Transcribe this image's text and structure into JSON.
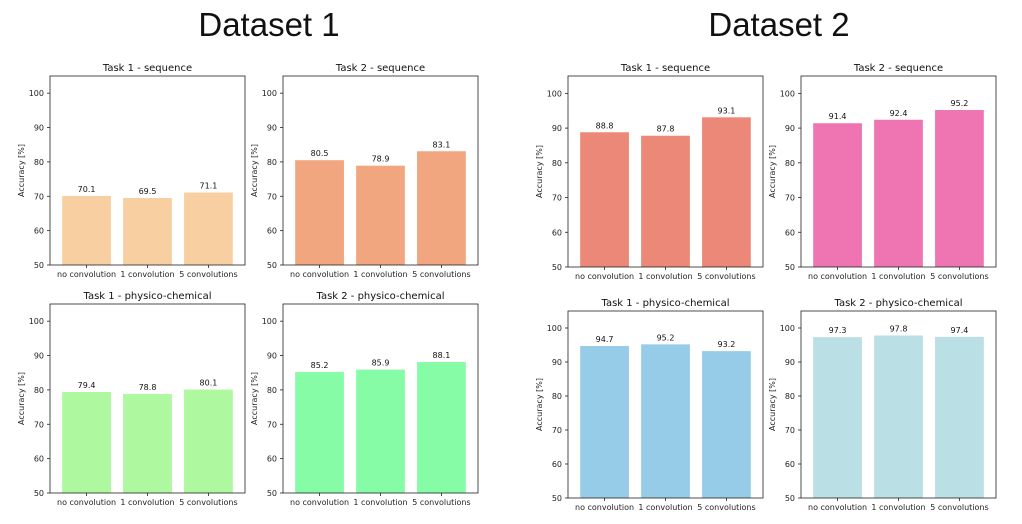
{
  "headers": {
    "dataset1": "Dataset 1",
    "dataset2": "Dataset 2"
  },
  "chart_data": [
    {
      "type": "bar",
      "title": "Task 1 - sequence",
      "ylabel": "Accuracy [%]",
      "ylim": [
        50,
        105
      ],
      "yticks": [
        50,
        60,
        70,
        80,
        90,
        100
      ],
      "categories": [
        "no convolution",
        "1 convolution",
        "5 convolutions"
      ],
      "values": [
        70.1,
        69.5,
        71.1
      ],
      "color": "#f8cfa0"
    },
    {
      "type": "bar",
      "title": "Task 2 - sequence",
      "ylabel": "Accuracy [%]",
      "ylim": [
        50,
        105
      ],
      "yticks": [
        50,
        60,
        70,
        80,
        90,
        100
      ],
      "categories": [
        "no convolution",
        "1 convolution",
        "5 convolutions"
      ],
      "values": [
        80.5,
        78.9,
        83.1
      ],
      "color": "#f2a67f"
    },
    {
      "type": "bar",
      "title": "Task 1 - sequence",
      "ylabel": "Accuracy [%]",
      "ylim": [
        50,
        105
      ],
      "yticks": [
        50,
        60,
        70,
        80,
        90,
        100
      ],
      "categories": [
        "no convolution",
        "1 convolution",
        "5 convolutions"
      ],
      "values": [
        88.8,
        87.8,
        93.1
      ],
      "color": "#ec8877"
    },
    {
      "type": "bar",
      "title": "Task 2 - sequence",
      "ylabel": "Accuracy [%]",
      "ylim": [
        50,
        105
      ],
      "yticks": [
        50,
        60,
        70,
        80,
        90,
        100
      ],
      "categories": [
        "no convolution",
        "1 convolution",
        "5 convolutions"
      ],
      "values": [
        91.4,
        92.4,
        95.2
      ],
      "color": "#ee74b2"
    },
    {
      "type": "bar",
      "title": "Task 1 - physico-chemical",
      "ylabel": "Accuracy [%]",
      "ylim": [
        50,
        105
      ],
      "yticks": [
        50,
        60,
        70,
        80,
        90,
        100
      ],
      "categories": [
        "no convolution",
        "1 convolution",
        "5 convolutions"
      ],
      "values": [
        79.4,
        78.8,
        80.1
      ],
      "color": "#aef8a0"
    },
    {
      "type": "bar",
      "title": "Task 2 - physico-chemical",
      "ylabel": "Accuracy [%]",
      "ylim": [
        50,
        105
      ],
      "yticks": [
        50,
        60,
        70,
        80,
        90,
        100
      ],
      "categories": [
        "no convolution",
        "1 convolution",
        "5 convolutions"
      ],
      "values": [
        85.2,
        85.9,
        88.1
      ],
      "color": "#86fca6"
    },
    {
      "type": "bar",
      "title": "Task 1 - physico-chemical",
      "ylabel": "Accuracy [%]",
      "ylim": [
        50,
        105
      ],
      "yticks": [
        50,
        60,
        70,
        80,
        90,
        100
      ],
      "categories": [
        "no convolution",
        "1 convolution",
        "5 convolutions"
      ],
      "values": [
        94.7,
        95.2,
        93.2
      ],
      "color": "#97cce8"
    },
    {
      "type": "bar",
      "title": "Task 2 - physico-chemical",
      "ylabel": "Accuracy [%]",
      "ylim": [
        50,
        105
      ],
      "yticks": [
        50,
        60,
        70,
        80,
        90,
        100
      ],
      "categories": [
        "no convolution",
        "1 convolution",
        "5 convolutions"
      ],
      "values": [
        97.3,
        97.8,
        97.4
      ],
      "color": "#badfe4"
    }
  ]
}
